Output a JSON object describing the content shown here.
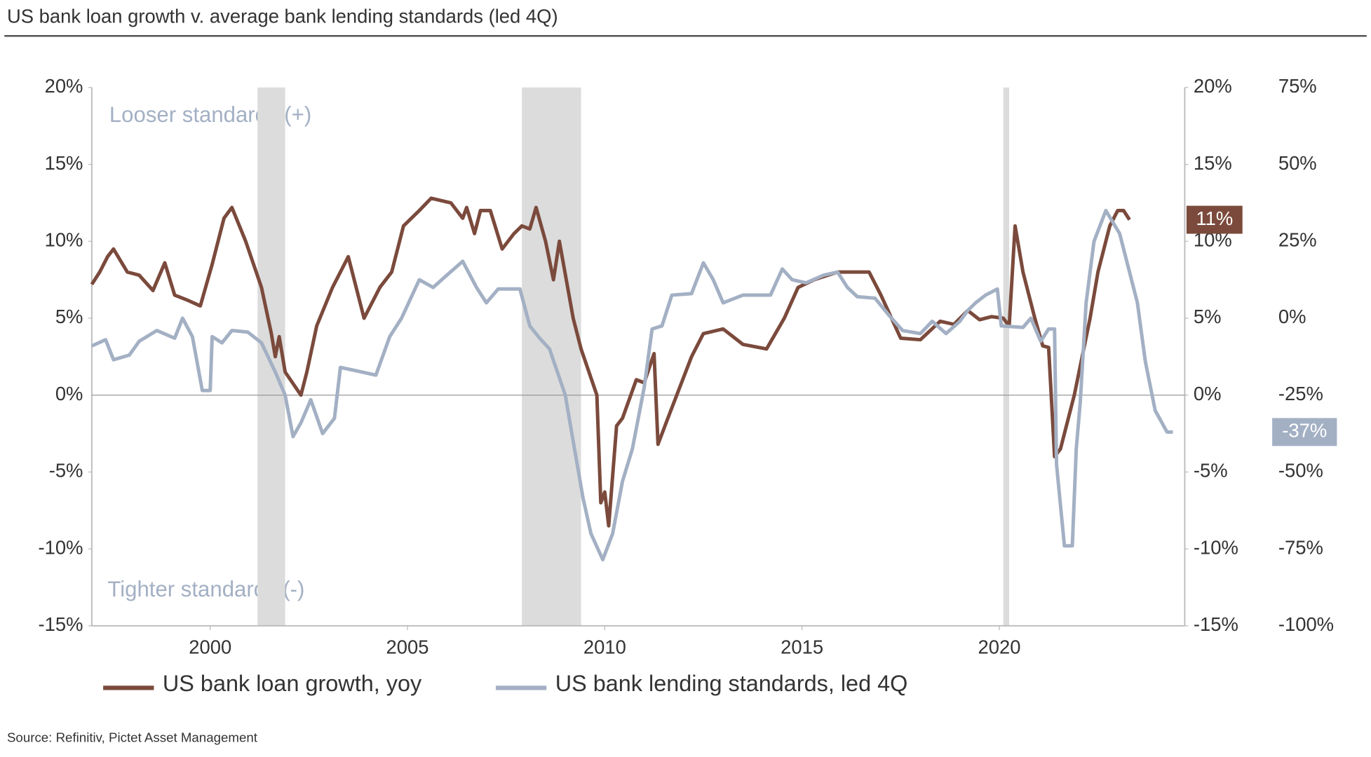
{
  "chart_data": {
    "type": "line",
    "title": "US bank loan growth v. average bank lending standards (led 4Q)",
    "source": "Source: Refinitiv, Pictet Asset Management",
    "annotations": [
      "Looser standards (+)",
      "Tighter standards (-)"
    ],
    "xlim": [
      1997,
      2024.7
    ],
    "xticks": [
      2000,
      2005,
      2010,
      2015,
      2020
    ],
    "ylim": [
      -15,
      20
    ],
    "yticks": [
      {
        "value": 20,
        "label": "20%"
      },
      {
        "value": 15,
        "label": "15%"
      },
      {
        "value": 10,
        "label": "10%"
      },
      {
        "value": 5,
        "label": "5%"
      },
      {
        "value": 0,
        "label": "0%"
      },
      {
        "value": -5,
        "label": "-5%"
      },
      {
        "value": -10,
        "label": "-10%"
      },
      {
        "value": -15,
        "label": "-15%"
      }
    ],
    "y2lim": [
      -100,
      75
    ],
    "y2ticks": [
      {
        "value": 75,
        "label": "75%"
      },
      {
        "value": 50,
        "label": "50%"
      },
      {
        "value": 25,
        "label": "25%"
      },
      {
        "value": 0,
        "label": "0%"
      },
      {
        "value": -25,
        "label": "-25%"
      },
      {
        "value": -50,
        "label": "-50%"
      },
      {
        "value": -75,
        "label": "-75%"
      },
      {
        "value": -100,
        "label": "-100%"
      }
    ],
    "shaded_regions": [
      [
        2001.2,
        2001.9
      ],
      [
        2007.9,
        2009.4
      ],
      [
        2020.1,
        2020.25
      ]
    ],
    "shade_color": "#dcdcdc",
    "series": [
      {
        "name": "US bank loan growth, yoy",
        "color": "#7b4a3c",
        "axis": "y",
        "last_label": "11%",
        "x": [
          1997,
          1997.2,
          1997.4,
          1997.55,
          1997.9,
          1998.2,
          1998.55,
          1998.85,
          1999.1,
          1999.4,
          1999.75,
          2000.05,
          2000.35,
          2000.55,
          2000.9,
          2001.3,
          2001.55,
          2001.65,
          2001.75,
          2001.9,
          2002.3,
          2002.45,
          2002.7,
          2003.1,
          2003.5,
          2003.9,
          2004.3,
          2004.6,
          2004.9,
          2005.3,
          2005.6,
          2006.1,
          2006.4,
          2006.5,
          2006.7,
          2006.85,
          2007.1,
          2007.4,
          2007.7,
          2007.9,
          2008.1,
          2008.26,
          2008.5,
          2008.7,
          2008.85,
          2009.2,
          2009.4,
          2009.8,
          2009.9,
          2010.0,
          2010.1,
          2010.3,
          2010.45,
          2010.8,
          2011.0,
          2011.25,
          2011.35,
          2011.6,
          2011.9,
          2012.2,
          2012.5,
          2013.0,
          2013.5,
          2014.1,
          2014.55,
          2014.9,
          2015.3,
          2015.9,
          2016.7,
          2017.0,
          2017.5,
          2018.0,
          2018.5,
          2018.85,
          2019.2,
          2019.5,
          2019.8,
          2020.1,
          2020.25,
          2020.4,
          2020.6,
          2020.9,
          2021.1,
          2021.25,
          2021.4,
          2021.55,
          2021.9,
          2022.3,
          2022.5,
          2022.8,
          2023.0,
          2023.15,
          2023.3
        ],
        "values": [
          7.2,
          8,
          9,
          9.5,
          8,
          7.8,
          6.8,
          8.6,
          6.5,
          6.2,
          5.8,
          8.5,
          11.5,
          12.2,
          10,
          7,
          4,
          2.5,
          3.8,
          1.5,
          0,
          1.5,
          4.5,
          7,
          9,
          5,
          7,
          8,
          11,
          12,
          12.8,
          12.5,
          11.5,
          12.2,
          10.5,
          12,
          12,
          9.5,
          10.5,
          11,
          10.8,
          12.2,
          10,
          7.5,
          10,
          5,
          3,
          0,
          -7,
          -6.3,
          -8.5,
          -2,
          -1.5,
          1,
          0.8,
          2.7,
          -3.2,
          -1.5,
          0.5,
          2.5,
          4,
          4.3,
          3.3,
          3,
          5,
          7,
          7.5,
          8,
          8,
          6.5,
          3.7,
          3.6,
          4.8,
          4.6,
          5.5,
          4.9,
          5.1,
          5,
          4.5,
          11,
          8,
          5,
          3.2,
          3.1,
          -4,
          -3.5,
          0,
          5,
          8,
          11,
          12,
          12,
          11.4
        ]
      },
      {
        "name": "US bank lending standards, led 4Q",
        "color": "#a3b0c4",
        "axis": "y2",
        "last_label": "-37%",
        "x": [
          1997,
          1997.35,
          1997.55,
          1997.95,
          1998.2,
          1998.65,
          1999.1,
          1999.3,
          1999.55,
          1999.8,
          2000.0,
          2000.05,
          2000.3,
          2000.55,
          2000.95,
          2001.3,
          2001.65,
          2001.9,
          2002.1,
          2002.3,
          2002.55,
          2002.85,
          2003.15,
          2003.3,
          2003.85,
          2004.2,
          2004.55,
          2004.85,
          2005.3,
          2005.65,
          2006.0,
          2006.4,
          2006.75,
          2007.0,
          2007.3,
          2007.85,
          2008.1,
          2008.35,
          2008.6,
          2009.0,
          2009.2,
          2009.45,
          2009.65,
          2009.95,
          2010.2,
          2010.45,
          2010.7,
          2011.0,
          2011.2,
          2011.45,
          2011.7,
          2012.2,
          2012.5,
          2012.75,
          2013.0,
          2013.5,
          2014.2,
          2014.5,
          2014.75,
          2015.1,
          2015.55,
          2015.9,
          2016.15,
          2016.4,
          2016.85,
          2017.2,
          2017.55,
          2018.0,
          2018.3,
          2018.65,
          2019.0,
          2019.2,
          2019.4,
          2019.65,
          2019.95,
          2020.05,
          2020.6,
          2020.8,
          2021.05,
          2021.25,
          2021.4,
          2021.45,
          2021.65,
          2021.85,
          2021.95,
          2022.05,
          2022.2,
          2022.4,
          2022.7,
          2023.05,
          2023.3,
          2023.5,
          2023.7,
          2023.95,
          2024.25,
          2024.4
        ],
        "values": [
          -9,
          -7,
          -13.5,
          -12,
          -7.5,
          -4,
          -6.5,
          0,
          -6,
          -23.5,
          -23.5,
          -6,
          -8,
          -4,
          -4.5,
          -8,
          -17.5,
          -25,
          -38.5,
          -34,
          -26.5,
          -37.5,
          -32.5,
          -16,
          -17.5,
          -18.5,
          -6,
          0,
          12.5,
          10,
          14,
          18.5,
          10,
          5,
          9.5,
          9.5,
          -2.5,
          -6.5,
          -10,
          -25,
          -40,
          -58.5,
          -70,
          -78.5,
          -70,
          -53,
          -42.5,
          -22.5,
          -3.5,
          -2.5,
          7.5,
          8,
          18,
          12.5,
          5,
          7.5,
          7.5,
          16,
          12.5,
          11.5,
          14,
          15,
          10,
          7,
          6.5,
          1,
          -4,
          -5,
          -1,
          -5,
          -1,
          2.5,
          5,
          7.5,
          9.5,
          -2.5,
          -3,
          0,
          -7.5,
          -3.5,
          -3.5,
          -47.5,
          -74,
          -74,
          -42.5,
          -27.5,
          5,
          25,
          35,
          27.5,
          15,
          5,
          -14,
          -30,
          -37,
          -37
        ]
      }
    ]
  }
}
